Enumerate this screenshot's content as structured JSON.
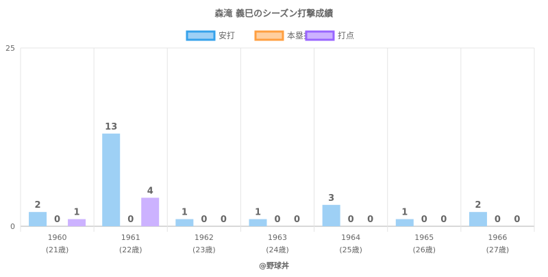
{
  "chart_data": {
    "type": "bar",
    "title": "森滝 義巳のシーズン打撃成績",
    "footer": "@野球丼",
    "ylim": [
      0,
      25
    ],
    "y_ticks": [
      "25",
      "0"
    ],
    "grid": true,
    "legend_position": "top",
    "categories": [
      "1960",
      "1961",
      "1962",
      "1963",
      "1964",
      "1965",
      "1966"
    ],
    "category_sublabels": [
      "(21歳)",
      "(22歳)",
      "(23歳)",
      "(24歳)",
      "(25歳)",
      "(26歳)",
      "(27歳)"
    ],
    "series": [
      {
        "name": "安打",
        "values": [
          2,
          13,
          1,
          1,
          3,
          1,
          2
        ],
        "color": "#9ed0f5",
        "border": "#36a2eb"
      },
      {
        "name": "本塁打",
        "values": [
          0,
          0,
          0,
          0,
          0,
          0,
          0
        ],
        "color": "#ffcf9f",
        "border": "#ff9f40"
      },
      {
        "name": "打点",
        "values": [
          1,
          4,
          0,
          0,
          0,
          0,
          0
        ],
        "color": "#ccb2ff",
        "border": "#9966ff"
      }
    ]
  }
}
